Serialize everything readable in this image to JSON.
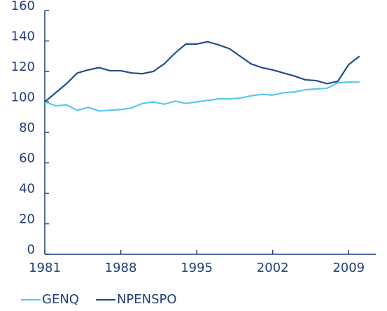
{
  "chart_data": {
    "type": "line",
    "x": [
      1981,
      1982,
      1983,
      1984,
      1985,
      1986,
      1987,
      1988,
      1989,
      1990,
      1991,
      1992,
      1993,
      1994,
      1995,
      1996,
      1997,
      1998,
      1999,
      2000,
      2001,
      2002,
      2003,
      2004,
      2005,
      2006,
      2007,
      2008,
      2009,
      2010
    ],
    "series": [
      {
        "name": "GENQ",
        "color": "#5cc6ec",
        "values": [
          100,
          97.5,
          98,
          94.5,
          96.5,
          94,
          94.5,
          95,
          96,
          99,
          100,
          98.5,
          100.5,
          99,
          100,
          101,
          102,
          102,
          102.5,
          104,
          105,
          104.5,
          106,
          106.5,
          108,
          108.5,
          109,
          112.5,
          113,
          113
        ]
      },
      {
        "name": "NPENSPO",
        "color": "#1f4e8c",
        "values": [
          100,
          106,
          112,
          119,
          121,
          122.5,
          120.5,
          120.5,
          119,
          118.5,
          120,
          125,
          132,
          138,
          138,
          139.5,
          137.5,
          135,
          130,
          125,
          122.5,
          121,
          119,
          117,
          114.5,
          114,
          112,
          113.5,
          124.5,
          130
        ]
      }
    ],
    "xlim": [
      1981,
      2011.5
    ],
    "xticks": [
      1981,
      1988,
      1995,
      2002,
      2009
    ],
    "ylim": [
      0,
      160
    ],
    "yticks": [
      0,
      20,
      40,
      60,
      80,
      100,
      120,
      140,
      160
    ],
    "grid": false,
    "legend": "bottom-left"
  }
}
